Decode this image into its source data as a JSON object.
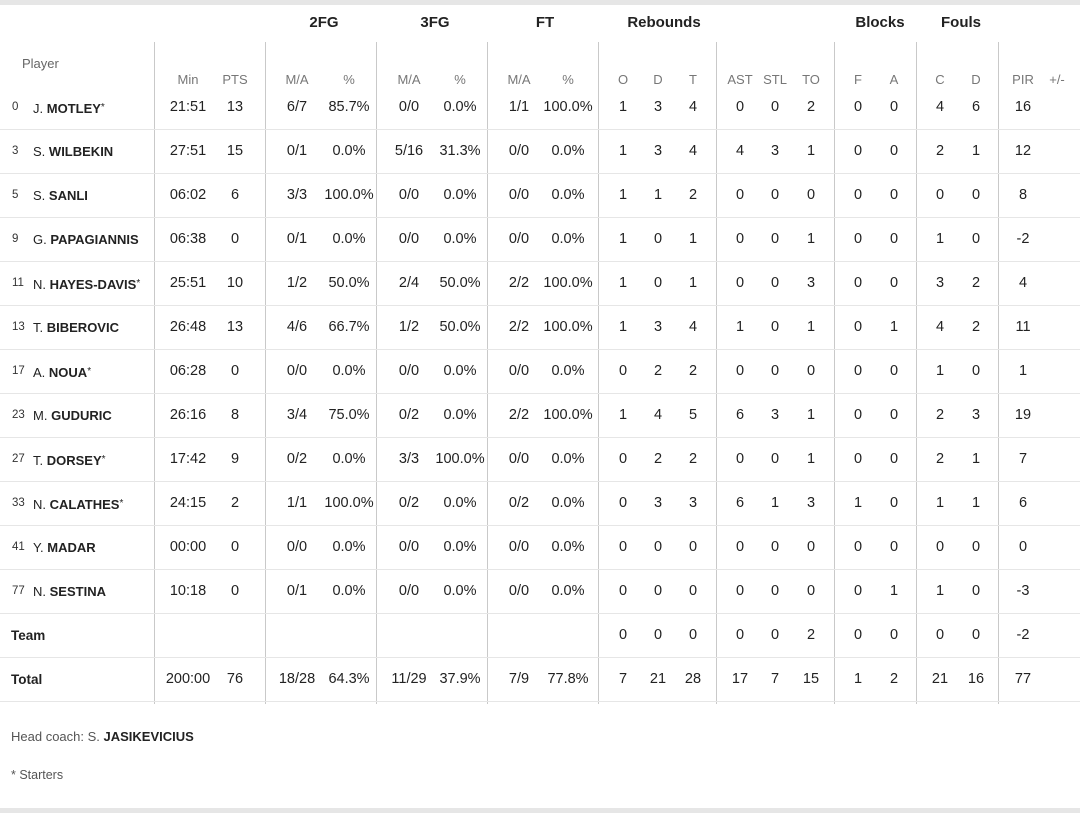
{
  "headers": {
    "player": "Player",
    "groups": [
      {
        "key": "fg2",
        "label": "2FG"
      },
      {
        "key": "fg3",
        "label": "3FG"
      },
      {
        "key": "ft",
        "label": "FT"
      },
      {
        "key": "reb",
        "label": "Rebounds"
      },
      {
        "key": "blk",
        "label": "Blocks"
      },
      {
        "key": "fouls",
        "label": "Fouls"
      }
    ],
    "columns": [
      "Min",
      "PTS",
      "M/A",
      "%",
      "M/A",
      "%",
      "M/A",
      "%",
      "O",
      "D",
      "T",
      "AST",
      "STL",
      "TO",
      "F",
      "A",
      "C",
      "D",
      "PIR",
      "+/-"
    ]
  },
  "players": [
    {
      "num": "0",
      "first": "J.",
      "last": "MOTLEY",
      "starter": true,
      "stats": [
        "21:51",
        "13",
        "6/7",
        "85.7%",
        "0/0",
        "0.0%",
        "1/1",
        "100.0%",
        "1",
        "3",
        "4",
        "0",
        "0",
        "2",
        "0",
        "0",
        "4",
        "6",
        "16",
        ""
      ]
    },
    {
      "num": "3",
      "first": "S.",
      "last": "WILBEKIN",
      "starter": false,
      "stats": [
        "27:51",
        "15",
        "0/1",
        "0.0%",
        "5/16",
        "31.3%",
        "0/0",
        "0.0%",
        "1",
        "3",
        "4",
        "4",
        "3",
        "1",
        "0",
        "0",
        "2",
        "1",
        "12",
        ""
      ]
    },
    {
      "num": "5",
      "first": "S.",
      "last": "SANLI",
      "starter": false,
      "stats": [
        "06:02",
        "6",
        "3/3",
        "100.0%",
        "0/0",
        "0.0%",
        "0/0",
        "0.0%",
        "1",
        "1",
        "2",
        "0",
        "0",
        "0",
        "0",
        "0",
        "0",
        "0",
        "8",
        ""
      ]
    },
    {
      "num": "9",
      "first": "G.",
      "last": "PAPAGIANNIS",
      "starter": false,
      "stats": [
        "06:38",
        "0",
        "0/1",
        "0.0%",
        "0/0",
        "0.0%",
        "0/0",
        "0.0%",
        "1",
        "0",
        "1",
        "0",
        "0",
        "1",
        "0",
        "0",
        "1",
        "0",
        "-2",
        ""
      ]
    },
    {
      "num": "11",
      "first": "N.",
      "last": "HAYES-DAVIS",
      "starter": true,
      "stats": [
        "25:51",
        "10",
        "1/2",
        "50.0%",
        "2/4",
        "50.0%",
        "2/2",
        "100.0%",
        "1",
        "0",
        "1",
        "0",
        "0",
        "3",
        "0",
        "0",
        "3",
        "2",
        "4",
        ""
      ]
    },
    {
      "num": "13",
      "first": "T.",
      "last": "BIBEROVIC",
      "starter": false,
      "stats": [
        "26:48",
        "13",
        "4/6",
        "66.7%",
        "1/2",
        "50.0%",
        "2/2",
        "100.0%",
        "1",
        "3",
        "4",
        "1",
        "0",
        "1",
        "0",
        "1",
        "4",
        "2",
        "11",
        ""
      ]
    },
    {
      "num": "17",
      "first": "A.",
      "last": "NOUA",
      "starter": true,
      "stats": [
        "06:28",
        "0",
        "0/0",
        "0.0%",
        "0/0",
        "0.0%",
        "0/0",
        "0.0%",
        "0",
        "2",
        "2",
        "0",
        "0",
        "0",
        "0",
        "0",
        "1",
        "0",
        "1",
        ""
      ]
    },
    {
      "num": "23",
      "first": "M.",
      "last": "GUDURIC",
      "starter": false,
      "stats": [
        "26:16",
        "8",
        "3/4",
        "75.0%",
        "0/2",
        "0.0%",
        "2/2",
        "100.0%",
        "1",
        "4",
        "5",
        "6",
        "3",
        "1",
        "0",
        "0",
        "2",
        "3",
        "19",
        ""
      ]
    },
    {
      "num": "27",
      "first": "T.",
      "last": "DORSEY",
      "starter": true,
      "stats": [
        "17:42",
        "9",
        "0/2",
        "0.0%",
        "3/3",
        "100.0%",
        "0/0",
        "0.0%",
        "0",
        "2",
        "2",
        "0",
        "0",
        "1",
        "0",
        "0",
        "2",
        "1",
        "7",
        ""
      ]
    },
    {
      "num": "33",
      "first": "N.",
      "last": "CALATHES",
      "starter": true,
      "stats": [
        "24:15",
        "2",
        "1/1",
        "100.0%",
        "0/2",
        "0.0%",
        "0/2",
        "0.0%",
        "0",
        "3",
        "3",
        "6",
        "1",
        "3",
        "1",
        "0",
        "1",
        "1",
        "6",
        ""
      ]
    },
    {
      "num": "41",
      "first": "Y.",
      "last": "MADAR",
      "starter": false,
      "stats": [
        "00:00",
        "0",
        "0/0",
        "0.0%",
        "0/0",
        "0.0%",
        "0/0",
        "0.0%",
        "0",
        "0",
        "0",
        "0",
        "0",
        "0",
        "0",
        "0",
        "0",
        "0",
        "0",
        ""
      ]
    },
    {
      "num": "77",
      "first": "N.",
      "last": "SESTINA",
      "starter": false,
      "stats": [
        "10:18",
        "0",
        "0/1",
        "0.0%",
        "0/0",
        "0.0%",
        "0/0",
        "0.0%",
        "0",
        "0",
        "0",
        "0",
        "0",
        "0",
        "0",
        "1",
        "1",
        "0",
        "-3",
        ""
      ]
    }
  ],
  "team": {
    "label": "Team",
    "stats": [
      "",
      "",
      "",
      "",
      "",
      "",
      "",
      "",
      "0",
      "0",
      "0",
      "0",
      "0",
      "2",
      "0",
      "0",
      "0",
      "0",
      "-2",
      ""
    ]
  },
  "total": {
    "label": "Total",
    "stats": [
      "200:00",
      "76",
      "18/28",
      "64.3%",
      "11/29",
      "37.9%",
      "7/9",
      "77.8%",
      "7",
      "21",
      "28",
      "17",
      "7",
      "15",
      "1",
      "2",
      "21",
      "16",
      "77",
      ""
    ]
  },
  "footer": {
    "coach_prefix": "Head coach: S.",
    "coach_name": "JASIKEVICIUS",
    "starters_note": "* Starters"
  }
}
